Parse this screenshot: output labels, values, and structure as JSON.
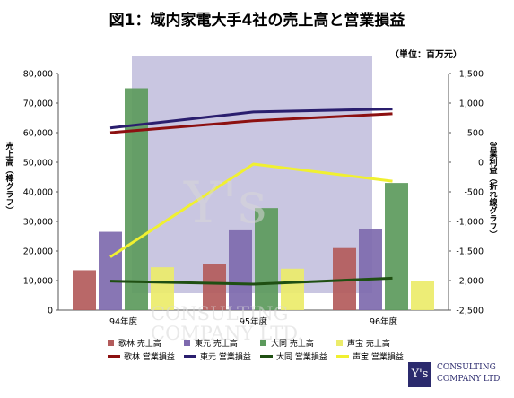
{
  "title": "図1：域内家電大手4社の売上高と営業損益",
  "unit_note": "（単位：百万元）",
  "watermark": {
    "mark": "Y's",
    "line1": "CONSULTING",
    "line2": "COMPANY LTD."
  },
  "logo": {
    "mark": "Y's",
    "line1": "CONSULTING",
    "line2": "COMPANY LTD."
  },
  "colors": {
    "bg_rect": "#c9c6e1",
    "bar_kabayashi": "#b35b5b",
    "bar_toyuan": "#7e6aae",
    "bar_datong": "#5c9a5c",
    "bar_shenghbao": "#ecec6a",
    "line_kabayashi": "#8c1010",
    "line_toyuan": "#2a1e6e",
    "line_datong": "#1f4f12",
    "line_shenghbao": "#f0f030"
  },
  "chart_data": {
    "type": "bar+line",
    "title": "図1：域内家電大手4社の売上高と営業損益",
    "categories": [
      "94年度",
      "95年度",
      "96年度"
    ],
    "ylabel": "売上高（棒グラフ）",
    "ylabel_right": "営業利益（折れ線グラフ）",
    "ylim": [
      0,
      80000
    ],
    "ylim_right": [
      -2500,
      1500
    ],
    "yticks": [
      "80,000",
      "70,000",
      "60,000",
      "50,000",
      "40,000",
      "30,000",
      "20,000",
      "10,000",
      "0"
    ],
    "yticks_right": [
      "1,500",
      "1,000",
      "500",
      "0",
      "-500",
      "-1,000",
      "-1,500",
      "-2,000",
      "-2,500"
    ],
    "bar_series": [
      {
        "name": "歌林 売上高",
        "values": [
          13500,
          15500,
          21000
        ]
      },
      {
        "name": "東元 売上高",
        "values": [
          26500,
          27000,
          27500
        ]
      },
      {
        "name": "大同 売上高",
        "values": [
          75000,
          34500,
          43000
        ]
      },
      {
        "name": "声宝 売上高",
        "values": [
          14500,
          14000,
          10000
        ]
      }
    ],
    "line_series": [
      {
        "name": "歌林 営業損益",
        "values": [
          500,
          700,
          820
        ]
      },
      {
        "name": "東元 営業損益",
        "values": [
          580,
          850,
          900
        ]
      },
      {
        "name": "大同 営業損益",
        "values": [
          -2010,
          -2060,
          -1960
        ]
      },
      {
        "name": "声宝 営業損益",
        "values": [
          -1600,
          -30,
          -320
        ]
      }
    ],
    "grid": false,
    "legend": "bottom"
  }
}
